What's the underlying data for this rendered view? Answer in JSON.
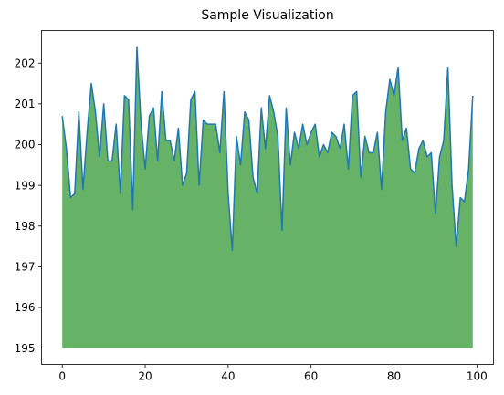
{
  "chart_data": {
    "type": "area",
    "title": "Sample Visualization",
    "xlabel": "",
    "ylabel": "",
    "xlim": [
      -5,
      104
    ],
    "ylim": [
      194.6,
      202.8
    ],
    "xticks": [
      0,
      20,
      40,
      60,
      80,
      100
    ],
    "yticks": [
      195,
      196,
      197,
      198,
      199,
      200,
      201,
      202
    ],
    "fill_baseline": 195,
    "grid": false,
    "legend": "none",
    "series": [
      {
        "line_color": "#1f77b4",
        "fill_color": "#66b266",
        "x": [
          0,
          1,
          2,
          3,
          4,
          5,
          6,
          7,
          8,
          9,
          10,
          11,
          12,
          13,
          14,
          15,
          16,
          17,
          18,
          19,
          20,
          21,
          22,
          23,
          24,
          25,
          26,
          27,
          28,
          29,
          30,
          31,
          32,
          33,
          34,
          35,
          36,
          37,
          38,
          39,
          40,
          41,
          42,
          43,
          44,
          45,
          46,
          47,
          48,
          49,
          50,
          51,
          52,
          53,
          54,
          55,
          56,
          57,
          58,
          59,
          60,
          61,
          62,
          63,
          64,
          65,
          66,
          67,
          68,
          69,
          70,
          71,
          72,
          73,
          74,
          75,
          76,
          77,
          78,
          79,
          80,
          81,
          82,
          83,
          84,
          85,
          86,
          87,
          88,
          89,
          90,
          91,
          92,
          93,
          94,
          95,
          96,
          97,
          98,
          99
        ],
        "y": [
          200.7,
          199.9,
          198.7,
          198.8,
          200.8,
          198.9,
          200.3,
          201.5,
          200.8,
          199.7,
          201.0,
          199.6,
          199.6,
          200.5,
          198.8,
          201.2,
          201.1,
          198.4,
          202.4,
          200.5,
          199.4,
          200.7,
          200.9,
          199.6,
          201.3,
          200.1,
          200.1,
          199.6,
          200.4,
          199.0,
          199.3,
          201.1,
          201.3,
          199.0,
          200.6,
          200.5,
          200.5,
          200.5,
          199.8,
          201.3,
          198.8,
          197.4,
          200.2,
          199.5,
          200.8,
          200.6,
          199.2,
          198.8,
          200.9,
          199.9,
          201.2,
          200.8,
          200.2,
          197.9,
          200.9,
          199.5,
          200.3,
          199.9,
          200.5,
          200.0,
          200.3,
          200.5,
          199.7,
          200.0,
          199.8,
          200.3,
          200.2,
          199.9,
          200.5,
          199.4,
          201.2,
          201.3,
          199.2,
          200.2,
          199.8,
          199.8,
          200.3,
          198.9,
          200.8,
          201.6,
          201.2,
          201.9,
          200.1,
          200.4,
          199.4,
          199.3,
          199.9,
          200.1,
          199.7,
          199.8,
          198.3,
          199.7,
          200.1,
          201.9,
          199.0,
          197.5,
          198.7,
          198.6,
          199.4,
          201.2
        ]
      }
    ]
  }
}
